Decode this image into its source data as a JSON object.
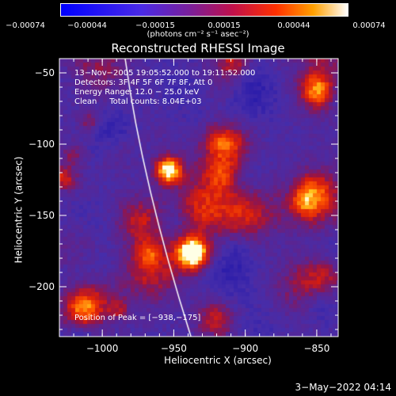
{
  "chart_data": {
    "type": "heatmap",
    "title": "Reconstructed RHESSI Image",
    "xlabel": "Heliocentric X (arcsec)",
    "ylabel": "Heliocentric Y (arcsec)",
    "xlim": [
      -1030,
      -835
    ],
    "ylim": [
      -235,
      -40
    ],
    "x_ticks": [
      -1000,
      -950,
      -900,
      -850
    ],
    "y_ticks": [
      -50,
      -100,
      -150,
      -200
    ],
    "x_tick_labels": [
      "−1000",
      "−950",
      "−900",
      "−850"
    ],
    "y_tick_labels": [
      "−50",
      "−100",
      "−150",
      "−200"
    ],
    "colorbar": {
      "range": [
        -0.00074,
        0.00074
      ],
      "ticks": [
        -0.00074,
        -0.00044,
        -0.00015,
        0.00015,
        0.00044,
        0.00074
      ],
      "tick_labels": [
        "−0.00074",
        "−0.00044",
        "−0.00015",
        "0.00015",
        "0.00044",
        "0.00074"
      ],
      "unit": "(photons cm⁻² s⁻¹ asec⁻²)"
    },
    "annotations": [
      "13−Nov−2005 19:05:52.000 to 19:11:52.000",
      "Detectors: 3F 4F 5F 6F 7F 8F, Att 0",
      "Energy Range: 12.0 − 25.0 keV",
      "Clean     Total counts: 8.04E+03"
    ],
    "peak_label": "Position of Peak = [−938,−175]",
    "peak": [
      -938,
      -175
    ],
    "limb_color": "#ffffff"
  },
  "footer": {
    "date": "3−May−2022 04:14"
  }
}
